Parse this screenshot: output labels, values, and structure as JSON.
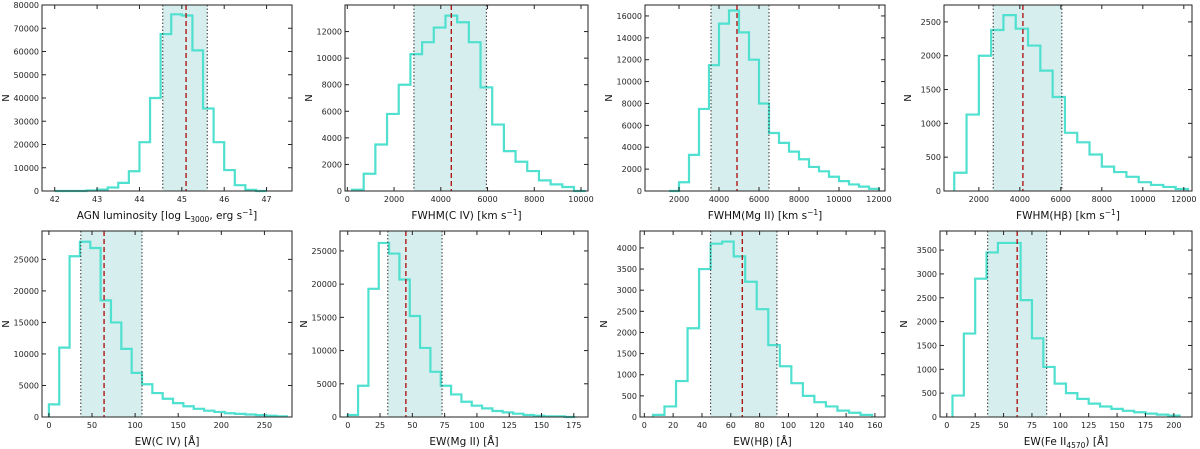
{
  "figure": {
    "colors": {
      "hist": "#4fe0cf",
      "band": "#d7eeee",
      "median": "#b01818",
      "bounds": "#333333"
    }
  },
  "chart_data": [
    {
      "type": "bar",
      "panel": "agn-luminosity",
      "xlabel": "AGN luminosity [log L",
      "xlabel_sub": "3000",
      "xlabel_tail": ", erg s",
      "xlabel_sup": "−1",
      "xlabel_end": "]",
      "ylabel": "N",
      "xlim": [
        41.7,
        47.6
      ],
      "ylim": [
        0,
        80000
      ],
      "xticks": [
        42,
        43,
        44,
        45,
        46,
        47
      ],
      "yticks": [
        0,
        10000,
        20000,
        30000,
        40000,
        50000,
        60000,
        70000,
        80000
      ],
      "edges": [
        42.0,
        42.25,
        42.5,
        42.75,
        43.0,
        43.25,
        43.5,
        43.75,
        44.0,
        44.25,
        44.5,
        44.75,
        45.0,
        45.25,
        45.5,
        45.75,
        46.0,
        46.25,
        46.5,
        46.75,
        47.0
      ],
      "values": [
        0,
        0,
        0,
        200,
        600,
        1500,
        3500,
        8500,
        21000,
        40000,
        67500,
        76000,
        75500,
        60500,
        35500,
        21000,
        9000,
        2500,
        500,
        0
      ],
      "band": [
        44.55,
        45.6
      ],
      "median": 45.1
    },
    {
      "type": "bar",
      "panel": "fwhm-civ",
      "xlabel": "FWHM(C IV) [km s",
      "xlabel_sup": "−1",
      "xlabel_end": "]",
      "ylabel": "N",
      "xlim": [
        -100,
        10300
      ],
      "ylim": [
        0,
        14000
      ],
      "xticks": [
        0,
        2000,
        4000,
        6000,
        8000,
        10000
      ],
      "yticks": [
        0,
        2000,
        4000,
        6000,
        8000,
        10000,
        12000
      ],
      "edges": [
        200,
        700,
        1200,
        1700,
        2200,
        2700,
        3200,
        3700,
        4200,
        4700,
        5200,
        5700,
        6200,
        6700,
        7200,
        7700,
        8200,
        8700,
        9200,
        9700,
        10200
      ],
      "values": [
        100,
        1300,
        3500,
        5800,
        8000,
        10300,
        11200,
        12300,
        13200,
        12700,
        11200,
        7800,
        5000,
        3000,
        2200,
        1500,
        800,
        500,
        300,
        0
      ],
      "band": [
        2850,
        5950
      ],
      "median": 4450
    },
    {
      "type": "bar",
      "panel": "fwhm-mgii",
      "xlabel": "FWHM(Mg II) [km s",
      "xlabel_sup": "−1",
      "xlabel_end": "]",
      "ylabel": "N",
      "xlim": [
        300,
        12300
      ],
      "ylim": [
        0,
        17000
      ],
      "xticks": [
        2000,
        4000,
        6000,
        8000,
        10000,
        12000
      ],
      "yticks": [
        0,
        2000,
        4000,
        6000,
        8000,
        10000,
        12000,
        14000,
        16000
      ],
      "edges": [
        1500,
        2000,
        2500,
        3000,
        3500,
        4000,
        4500,
        5000,
        5500,
        6000,
        6500,
        7000,
        7500,
        8000,
        8500,
        9000,
        9500,
        10000,
        10500,
        11000,
        11500,
        12000
      ],
      "values": [
        0,
        800,
        3300,
        7500,
        11500,
        15300,
        16500,
        14500,
        12000,
        8000,
        5300,
        4400,
        3600,
        2900,
        2200,
        1800,
        1300,
        900,
        600,
        400,
        200
      ],
      "band": [
        3600,
        6500
      ],
      "median": 4900
    },
    {
      "type": "bar",
      "panel": "fwhm-hbeta",
      "xlabel": "FWHM(Hβ) [km s",
      "xlabel_sup": "−1",
      "xlabel_end": "]",
      "ylabel": "N",
      "xlim": [
        300,
        12400
      ],
      "ylim": [
        0,
        2750
      ],
      "xticks": [
        2000,
        4000,
        6000,
        8000,
        10000,
        12000
      ],
      "yticks": [
        0,
        500,
        1000,
        1500,
        2000,
        2500
      ],
      "edges": [
        800,
        1400,
        2000,
        2600,
        3200,
        3800,
        4400,
        5000,
        5600,
        6200,
        6800,
        7400,
        8000,
        8600,
        9200,
        9800,
        10400,
        11000,
        11600,
        12200
      ],
      "values": [
        270,
        1130,
        2000,
        2380,
        2600,
        2400,
        2150,
        1780,
        1390,
        860,
        720,
        540,
        360,
        280,
        210,
        130,
        90,
        60,
        30
      ],
      "band": [
        2700,
        6050
      ],
      "median": 4150
    },
    {
      "type": "bar",
      "panel": "ew-civ",
      "xlabel": "EW(C IV) [Å]",
      "ylabel": "N",
      "xlim": [
        -8,
        282
      ],
      "ylim": [
        0,
        29500
      ],
      "xticks": [
        0,
        50,
        100,
        150,
        200,
        250
      ],
      "yticks": [
        0,
        5000,
        10000,
        15000,
        20000,
        25000
      ],
      "edges": [
        0,
        12,
        24,
        36,
        48,
        60,
        72,
        84,
        96,
        108,
        120,
        132,
        144,
        156,
        168,
        180,
        192,
        204,
        216,
        228,
        240,
        252,
        264,
        276
      ],
      "values": [
        2000,
        11000,
        25500,
        27800,
        26800,
        18500,
        15000,
        10800,
        7000,
        5200,
        3800,
        2900,
        2200,
        1700,
        1300,
        1000,
        800,
        600,
        500,
        400,
        300,
        200,
        100
      ],
      "band": [
        37,
        108
      ],
      "median": 64
    },
    {
      "type": "bar",
      "panel": "ew-mgii",
      "xlabel": "EW(Mg II) [Å]",
      "ylabel": "N",
      "xlim": [
        -6,
        186
      ],
      "ylim": [
        0,
        28000
      ],
      "xticks": [
        0,
        25,
        50,
        75,
        100,
        125,
        150,
        175
      ],
      "yticks": [
        0,
        5000,
        10000,
        15000,
        20000,
        25000
      ],
      "edges": [
        0,
        8,
        16,
        24,
        32,
        40,
        48,
        56,
        64,
        72,
        80,
        88,
        96,
        104,
        112,
        120,
        128,
        136,
        144,
        152,
        160,
        168,
        176
      ],
      "values": [
        300,
        4700,
        19300,
        26200,
        24600,
        20700,
        15200,
        10400,
        6800,
        4700,
        3400,
        2300,
        1700,
        1300,
        900,
        700,
        500,
        300,
        200,
        100,
        100,
        0
      ],
      "band": [
        31,
        73
      ],
      "median": 45
    },
    {
      "type": "bar",
      "panel": "ew-hbeta",
      "xlabel": "EW(Hβ) [Å]",
      "ylabel": "N",
      "xlim": [
        -3,
        167
      ],
      "ylim": [
        0,
        4400
      ],
      "xticks": [
        0,
        20,
        40,
        60,
        80,
        100,
        120,
        140,
        160
      ],
      "yticks": [
        0,
        500,
        1000,
        1500,
        2000,
        2500,
        3000,
        3500,
        4000
      ],
      "edges": [
        6,
        14,
        22,
        30,
        38,
        46,
        54,
        62,
        70,
        78,
        86,
        94,
        102,
        110,
        118,
        126,
        134,
        142,
        150,
        158
      ],
      "values": [
        50,
        250,
        850,
        2100,
        3500,
        4100,
        4150,
        3800,
        3200,
        2550,
        1700,
        1200,
        800,
        500,
        350,
        250,
        150,
        100,
        50
      ],
      "band": [
        46,
        92
      ],
      "median": 68
    },
    {
      "type": "bar",
      "panel": "ew-feii",
      "xlabel": "EW(Fe II",
      "xlabel_sub": "4570",
      "xlabel_end": ") [Å]",
      "ylabel": "N",
      "xlim": [
        -6,
        216
      ],
      "ylim": [
        0,
        3900
      ],
      "xticks": [
        0,
        25,
        50,
        75,
        100,
        125,
        150,
        175,
        200
      ],
      "yticks": [
        0,
        500,
        1000,
        1500,
        2000,
        2500,
        3000,
        3500
      ],
      "edges": [
        5,
        15,
        25,
        35,
        45,
        55,
        65,
        75,
        85,
        95,
        105,
        115,
        125,
        135,
        145,
        155,
        165,
        175,
        185,
        195,
        205
      ],
      "values": [
        450,
        1750,
        2900,
        3450,
        3650,
        3650,
        2450,
        1650,
        1050,
        700,
        500,
        380,
        280,
        220,
        170,
        130,
        100,
        70,
        50,
        30
      ],
      "band": [
        36,
        88
      ],
      "median": 62
    }
  ]
}
